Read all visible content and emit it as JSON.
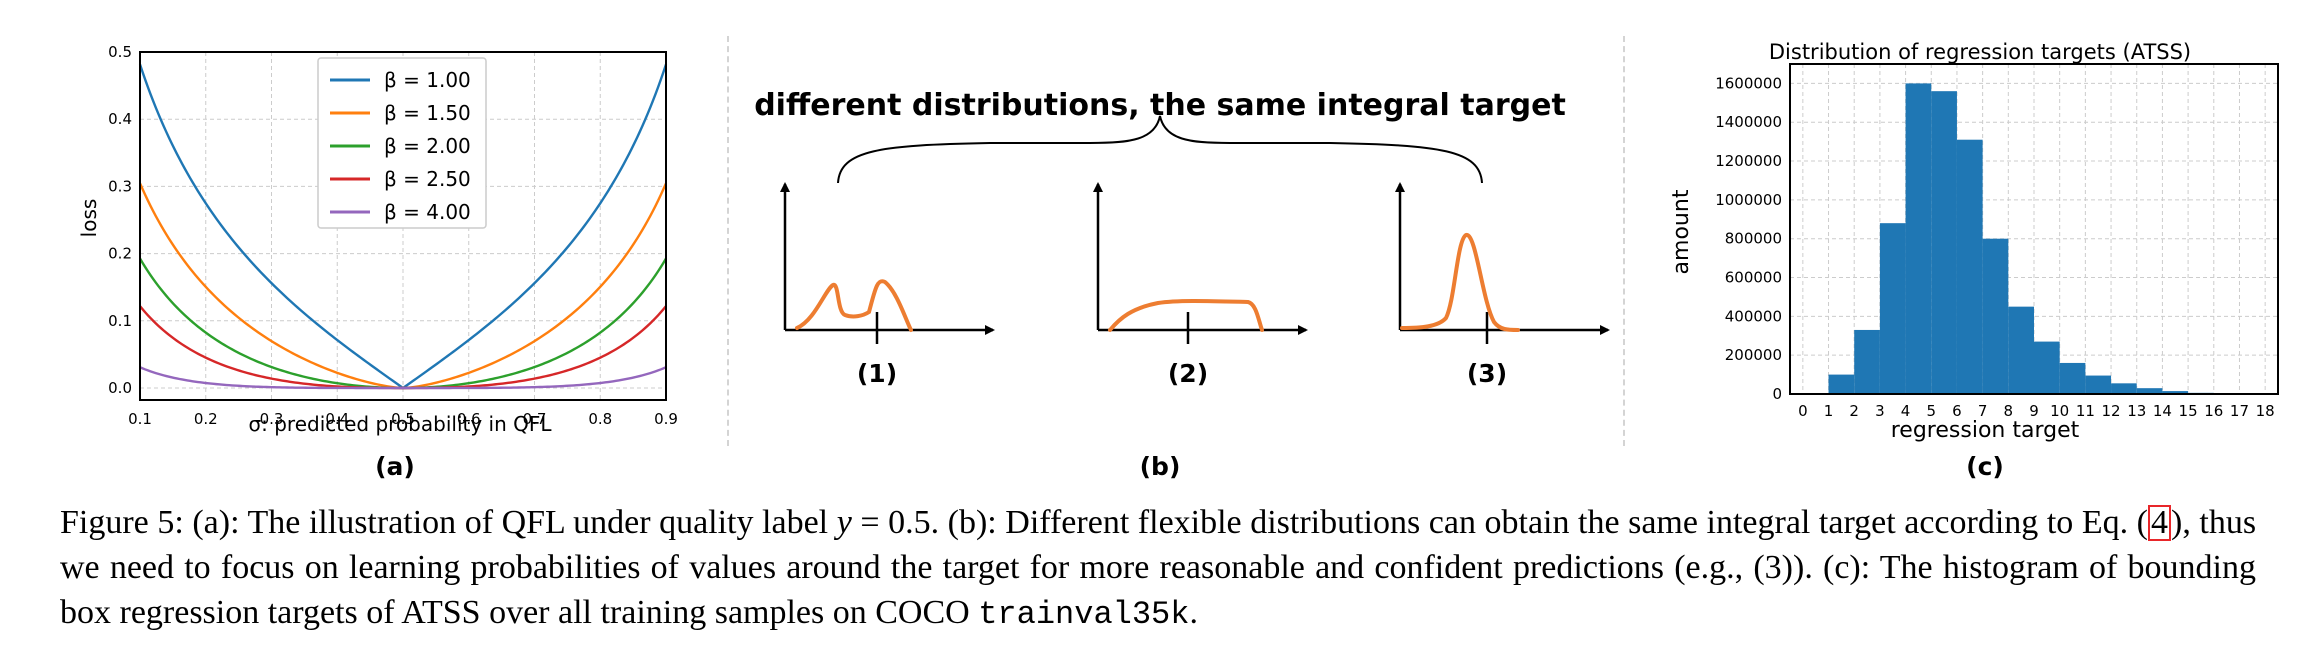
{
  "panel_a": {
    "label": "(a)",
    "chart_data": {
      "type": "line",
      "title": "",
      "xlabel": "σ: predicted probability in QFL",
      "ylabel": "loss",
      "xlim": [
        0.1,
        0.9
      ],
      "ylim": [
        0,
        0.5
      ],
      "x_ticks": [
        "0.1",
        "0.2",
        "0.3",
        "0.4",
        "0.5",
        "0.6",
        "0.7",
        "0.8",
        "0.9"
      ],
      "y_ticks": [
        "0.0",
        "0.1",
        "0.2",
        "0.3",
        "0.4",
        "0.5"
      ],
      "grid": true,
      "legend": "top-center",
      "quality_label_y": 0.5,
      "series": [
        {
          "name": "β = 1.00",
          "beta": 1.0,
          "color": "#1f77b4"
        },
        {
          "name": "β = 1.50",
          "beta": 1.5,
          "color": "#ff7f0e"
        },
        {
          "name": "β = 2.00",
          "beta": 2.0,
          "color": "#2ca02c"
        },
        {
          "name": "β = 2.50",
          "beta": 2.5,
          "color": "#d62728"
        },
        {
          "name": "β = 4.00",
          "beta": 4.0,
          "color": "#9467bd"
        }
      ]
    }
  },
  "panel_b": {
    "label": "(b)",
    "title": "different distributions, the same integral target",
    "curve_color": "#ed7d31",
    "items": [
      {
        "label": "(1)",
        "shape": "bimodal"
      },
      {
        "label": "(2)",
        "shape": "flat"
      },
      {
        "label": "(3)",
        "shape": "peaked"
      }
    ]
  },
  "panel_c": {
    "label": "(c)",
    "chart_data": {
      "type": "bar",
      "title": "Distribution of regression targets (ATSS)",
      "xlabel": "regression target",
      "ylabel": "amount",
      "ylim": [
        0,
        1700000
      ],
      "grid": true,
      "color": "#1f77b4",
      "x_ticks": [
        "0",
        "1",
        "2",
        "3",
        "4",
        "5",
        "6",
        "7",
        "8",
        "9",
        "10",
        "11",
        "12",
        "13",
        "14",
        "15",
        "16",
        "17",
        "18"
      ],
      "y_ticks": [
        "0",
        "200000",
        "400000",
        "600000",
        "800000",
        "1000000",
        "1200000",
        "1400000",
        "1600000"
      ],
      "bins": [
        {
          "start": 1,
          "value": 100000
        },
        {
          "start": 2,
          "value": 330000
        },
        {
          "start": 3,
          "value": 880000
        },
        {
          "start": 4,
          "value": 1600000
        },
        {
          "start": 5,
          "value": 1560000
        },
        {
          "start": 6,
          "value": 1310000
        },
        {
          "start": 7,
          "value": 800000
        },
        {
          "start": 8,
          "value": 450000
        },
        {
          "start": 9,
          "value": 270000
        },
        {
          "start": 10,
          "value": 160000
        },
        {
          "start": 11,
          "value": 95000
        },
        {
          "start": 12,
          "value": 55000
        },
        {
          "start": 13,
          "value": 30000
        },
        {
          "start": 14,
          "value": 15000
        },
        {
          "start": 15,
          "value": 6000
        },
        {
          "start": 16,
          "value": 2000
        },
        {
          "start": 17,
          "value": 1000
        }
      ]
    }
  },
  "caption": {
    "fig_label": "Figure 5:",
    "p1": "(a): The illustration of QFL under quality label",
    "math_y": "y",
    "math_eq": " = 0.5.",
    "p2": "(b): Different flexible distributions can obtain the same integral target according to Eq.",
    "ref_open": "(",
    "ref_num": "4",
    "ref_close": ")",
    "p3": ", thus we need to focus on learning probabilities of values around the target for more reasonable and confident predictions (e.g., (3)). (c): The histogram of bounding box regression targets of ATSS over all training samples on COCO",
    "dataset": "trainval35k",
    "end": "."
  }
}
